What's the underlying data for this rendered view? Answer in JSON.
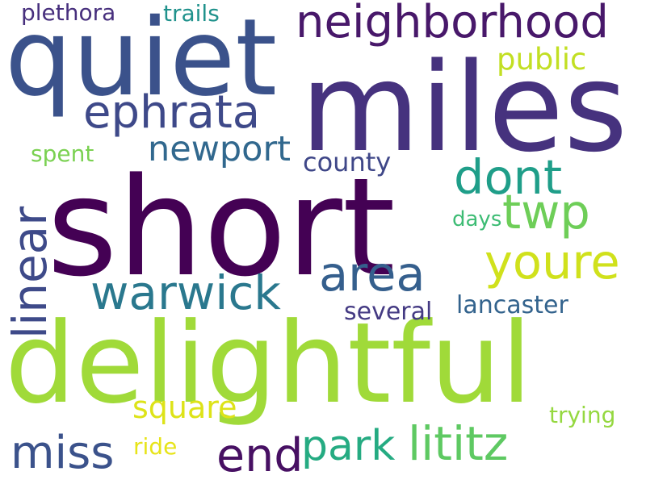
{
  "words": {
    "short": {
      "text": "short",
      "color": "#440154"
    },
    "miles": {
      "text": "miles",
      "color": "#46327e"
    },
    "delightful": {
      "text": "delightful",
      "color": "#a0da39"
    },
    "quiet": {
      "text": "quiet",
      "color": "#3b528b"
    },
    "neighborhood": {
      "text": "neighborhood",
      "color": "#48186a"
    },
    "ephrata": {
      "text": "ephrata",
      "color": "#3e4989"
    },
    "newport": {
      "text": "newport",
      "color": "#31688e"
    },
    "dont": {
      "text": "dont",
      "color": "#1f9e89"
    },
    "twp": {
      "text": "twp",
      "color": "#6ece58"
    },
    "youre": {
      "text": "youre",
      "color": "#d0e11c"
    },
    "area": {
      "text": "area",
      "color": "#355f8d"
    },
    "warwick": {
      "text": "warwick",
      "color": "#2a788e"
    },
    "linear": {
      "text": "linear",
      "color": "#3e4a89"
    },
    "park": {
      "text": "park",
      "color": "#25ab82"
    },
    "lititz": {
      "text": "lititz",
      "color": "#5ec962"
    },
    "end": {
      "text": "end",
      "color": "#471063"
    },
    "miss": {
      "text": "miss",
      "color": "#3b528b"
    },
    "square": {
      "text": "square",
      "color": "#dde318"
    },
    "public": {
      "text": "public",
      "color": "#c2df23"
    },
    "county": {
      "text": "county",
      "color": "#3f4788"
    },
    "lancaster": {
      "text": "lancaster",
      "color": "#33638d"
    },
    "several": {
      "text": "several",
      "color": "#443a83"
    },
    "plethora": {
      "text": "plethora",
      "color": "#472f7d"
    },
    "trails": {
      "text": "trails",
      "color": "#20928c"
    },
    "spent": {
      "text": "spent",
      "color": "#7ad151"
    },
    "days": {
      "text": "days",
      "color": "#3dbc74"
    },
    "trying": {
      "text": "trying",
      "color": "#95d840"
    },
    "ride": {
      "text": "ride",
      "color": "#e7e419"
    }
  }
}
